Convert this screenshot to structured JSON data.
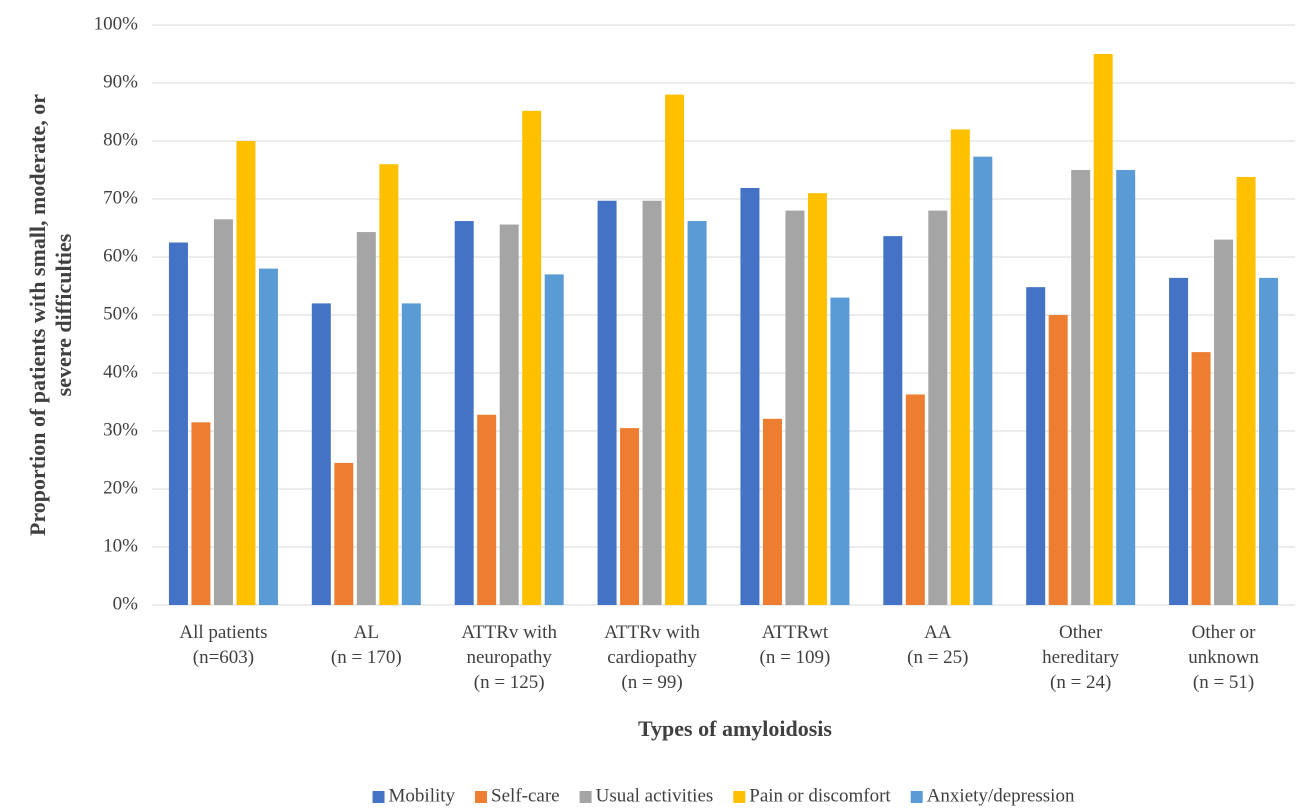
{
  "chart_data": {
    "type": "bar",
    "y_label": [
      "Proportion  of patients with small, moderate, or",
      "severe difficulties"
    ],
    "x_label": "Types of amyloidosis",
    "categories": [
      [
        "All patients",
        "(n=603)"
      ],
      [
        "AL",
        "(n = 170)"
      ],
      [
        "ATTRv with",
        "neuropathy",
        "(n = 125)"
      ],
      [
        "ATTRv with",
        "cardiopathy",
        "(n = 99)"
      ],
      [
        "ATTRwt",
        "(n = 109)"
      ],
      [
        "AA",
        "(n = 25)"
      ],
      [
        "Other",
        "hereditary",
        "(n = 24)"
      ],
      [
        "Other or",
        "unknown",
        "(n =  51)"
      ]
    ],
    "series": [
      {
        "name": "Mobility",
        "color": "#4472c4",
        "values": [
          62.5,
          52,
          66.2,
          69.7,
          71.9,
          63.6,
          54.8,
          56.4
        ]
      },
      {
        "name": "Self-care",
        "color": "#ed7d31",
        "values": [
          31.5,
          24.5,
          32.8,
          30.5,
          32.1,
          36.3,
          50,
          43.6
        ]
      },
      {
        "name": "Usual activities",
        "color": "#a5a5a5",
        "values": [
          66.5,
          64.3,
          65.6,
          69.7,
          68,
          68,
          75,
          63
        ]
      },
      {
        "name": "Pain or discomfort",
        "color": "#ffc000",
        "values": [
          80,
          76,
          85.2,
          88,
          71,
          82,
          95,
          73.8
        ]
      },
      {
        "name": "Anxiety/depression",
        "color": "#5b9bd5",
        "values": [
          58,
          52,
          57,
          66.2,
          53,
          77.3,
          75,
          56.4
        ]
      }
    ],
    "ylim": [
      0,
      100
    ],
    "yticks": [
      {
        "value": 0,
        "label": "0%"
      },
      {
        "value": 10,
        "label": "10%"
      },
      {
        "value": 20,
        "label": "20%"
      },
      {
        "value": 30,
        "label": "30%"
      },
      {
        "value": 40,
        "label": "40%"
      },
      {
        "value": 50,
        "label": "50%"
      },
      {
        "value": 60,
        "label": "60%"
      },
      {
        "value": 70,
        "label": "70%"
      },
      {
        "value": 80,
        "label": "80%"
      },
      {
        "value": 90,
        "label": "90%"
      },
      {
        "value": 100,
        "label": "100%"
      }
    ],
    "grid": true,
    "legend": "bottom"
  }
}
